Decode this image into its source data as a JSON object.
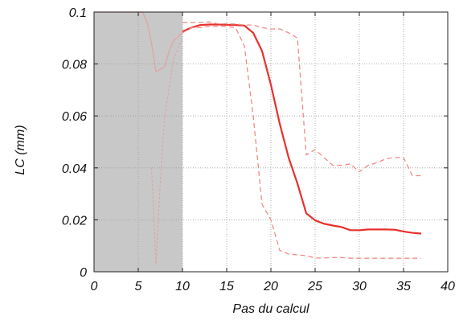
{
  "chart_data": {
    "type": "line",
    "title": "",
    "xlabel": "Pas du calcul",
    "ylabel": "LC (mm)",
    "xlim": [
      0,
      40
    ],
    "ylim": [
      0,
      0.1
    ],
    "x_ticks": [
      "0",
      "5",
      "10",
      "15",
      "20",
      "25",
      "30",
      "35",
      "40"
    ],
    "y_ticks": [
      "0",
      "0.02",
      "0.04",
      "0.06",
      "0.08",
      "0.1"
    ],
    "grid": true,
    "shaded_region_x": [
      0,
      10
    ],
    "colors": {
      "line": "#e8302c",
      "dashed": "#f08a86",
      "shade": "#c8c8c8",
      "shade_line": "#e2a29f"
    },
    "series": [
      {
        "style": "solid",
        "x": [
          10,
          11,
          12,
          13,
          14,
          15,
          16,
          17,
          18,
          19,
          20,
          21,
          22,
          23,
          24,
          25,
          26,
          27,
          28,
          29,
          30,
          31,
          32,
          33,
          34,
          35,
          36,
          37
        ],
        "y": [
          0.0925,
          0.094,
          0.095,
          0.0952,
          0.0952,
          0.0951,
          0.095,
          0.0948,
          0.092,
          0.085,
          0.072,
          0.057,
          0.044,
          0.034,
          0.0225,
          0.0198,
          0.0185,
          0.0178,
          0.0172,
          0.016,
          0.016,
          0.0163,
          0.0163,
          0.0163,
          0.0162,
          0.0155,
          0.015,
          0.0147
        ]
      },
      {
        "style": "dashed",
        "x": [
          10,
          11,
          12,
          13,
          14,
          15,
          16,
          17,
          18,
          19,
          20,
          21,
          22,
          23,
          24,
          25,
          26,
          27,
          28,
          29,
          30,
          31,
          32,
          33,
          34,
          35,
          36,
          37
        ],
        "y": [
          0.096,
          0.096,
          0.096,
          0.0962,
          0.0955,
          0.0955,
          0.0954,
          0.095,
          0.095,
          0.094,
          0.0935,
          0.0935,
          0.092,
          0.09,
          0.045,
          0.047,
          0.044,
          0.041,
          0.041,
          0.0415,
          0.0385,
          0.041,
          0.042,
          0.0435,
          0.044,
          0.044,
          0.037,
          0.037
        ]
      },
      {
        "style": "dashed",
        "x": [
          10,
          11,
          12,
          13,
          14,
          15,
          16,
          17,
          18,
          19,
          20,
          21,
          22,
          23,
          24,
          25,
          26,
          27,
          28,
          29,
          30,
          31,
          32,
          33,
          34,
          35,
          36,
          37
        ],
        "y": [
          0.092,
          0.094,
          0.094,
          0.0945,
          0.0945,
          0.0945,
          0.094,
          0.087,
          0.06,
          0.026,
          0.02,
          0.0082,
          0.0068,
          0.0065,
          0.0062,
          0.0053,
          0.0053,
          0.0055,
          0.0055,
          0.0052,
          0.0052,
          0.0052,
          0.0052,
          0.0052,
          0.0052,
          0.0052,
          0.0052,
          0.0052
        ]
      }
    ],
    "shaded_trace": {
      "x": [
        0,
        5.5,
        6,
        6.5,
        7,
        8,
        8.5,
        9,
        10
      ],
      "y": [
        0.1,
        0.1,
        0.096,
        0.088,
        0.077,
        0.079,
        0.085,
        0.089,
        0.092
      ]
    },
    "shaded_spike": {
      "x": [
        6.5,
        7,
        7.5,
        8,
        9,
        10
      ],
      "y": [
        0.04,
        0.003,
        0.035,
        0.06,
        0.082,
        0.09
      ]
    }
  }
}
